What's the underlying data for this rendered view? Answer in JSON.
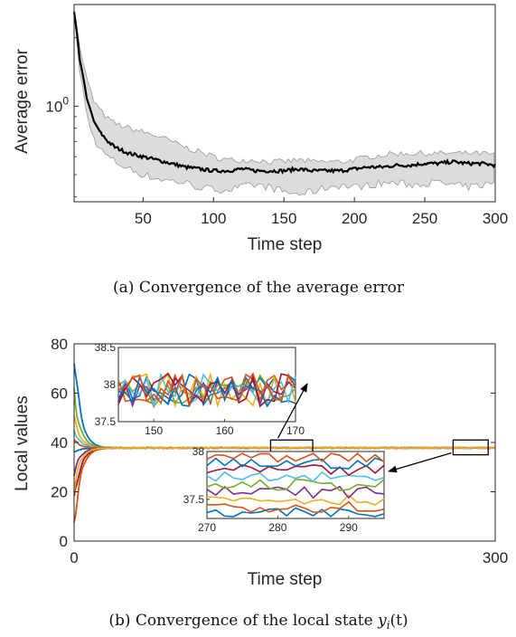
{
  "chart_data": [
    {
      "type": "line",
      "ylabel": "Average error",
      "xlabel": "Time step",
      "caption": "(a) Convergence of the average error",
      "y_scale": "log",
      "xlim": [
        1,
        300
      ],
      "ylim": [
        0.38,
        2.8
      ],
      "x_ticks": [
        50,
        100,
        150,
        200,
        250,
        300
      ],
      "x_tick_labels": [
        "50",
        "100",
        "150",
        "200",
        "250",
        "300"
      ],
      "y_tick_value": 1.0,
      "y_tick_label_base": "10",
      "y_tick_label_exp": "0",
      "grid": false,
      "series": [
        {
          "role": "mean",
          "color": "#000000",
          "x": [
            1,
            5,
            10,
            15,
            20,
            25,
            30,
            40,
            50,
            60,
            70,
            80,
            90,
            100,
            110,
            120,
            130,
            140,
            150,
            160,
            170,
            180,
            190,
            200,
            210,
            220,
            230,
            240,
            250,
            260,
            270,
            280,
            290,
            300
          ],
          "y": [
            2.6,
            1.6,
            1.08,
            0.86,
            0.76,
            0.7,
            0.66,
            0.62,
            0.6,
            0.58,
            0.56,
            0.54,
            0.53,
            0.52,
            0.52,
            0.53,
            0.52,
            0.52,
            0.52,
            0.53,
            0.52,
            0.52,
            0.52,
            0.53,
            0.54,
            0.54,
            0.55,
            0.55,
            0.56,
            0.56,
            0.57,
            0.56,
            0.56,
            0.55
          ]
        },
        {
          "role": "band-upper",
          "color": "#dcdcdc",
          "x": [
            1,
            5,
            10,
            15,
            20,
            25,
            30,
            40,
            50,
            60,
            70,
            80,
            90,
            100,
            110,
            120,
            130,
            140,
            150,
            160,
            170,
            180,
            190,
            200,
            210,
            220,
            230,
            240,
            250,
            260,
            270,
            280,
            290,
            300
          ],
          "y": [
            2.7,
            1.8,
            1.3,
            1.05,
            0.95,
            0.88,
            0.84,
            0.8,
            0.77,
            0.74,
            0.7,
            0.66,
            0.63,
            0.6,
            0.58,
            0.58,
            0.58,
            0.57,
            0.57,
            0.58,
            0.57,
            0.57,
            0.57,
            0.58,
            0.6,
            0.61,
            0.62,
            0.62,
            0.62,
            0.62,
            0.62,
            0.62,
            0.62,
            0.61
          ]
        },
        {
          "role": "band-lower",
          "color": "#dcdcdc",
          "x": [
            1,
            5,
            10,
            15,
            20,
            25,
            30,
            40,
            50,
            60,
            70,
            80,
            90,
            100,
            110,
            120,
            130,
            140,
            150,
            160,
            170,
            180,
            190,
            200,
            210,
            220,
            230,
            240,
            250,
            260,
            270,
            280,
            290,
            300
          ],
          "y": [
            2.5,
            1.4,
            0.9,
            0.72,
            0.64,
            0.6,
            0.57,
            0.53,
            0.5,
            0.48,
            0.47,
            0.46,
            0.44,
            0.43,
            0.43,
            0.44,
            0.45,
            0.44,
            0.42,
            0.41,
            0.42,
            0.44,
            0.45,
            0.44,
            0.45,
            0.46,
            0.46,
            0.45,
            0.46,
            0.46,
            0.45,
            0.44,
            0.45,
            0.46
          ]
        }
      ]
    },
    {
      "type": "line",
      "ylabel": "Local values",
      "xlabel": "Time step",
      "caption_prefix": "(b) Convergence of the local state ",
      "caption_math": "y",
      "caption_sub": "i",
      "caption_suffix": "(t)",
      "xlim": [
        0,
        300
      ],
      "ylim": [
        0,
        80
      ],
      "x_ticks": [
        0,
        300
      ],
      "x_tick_labels": [
        "0",
        "300"
      ],
      "y_ticks": [
        0,
        20,
        40,
        60,
        80
      ],
      "y_tick_labels": [
        "0",
        "20",
        "40",
        "60",
        "80"
      ],
      "grid": false,
      "consensus_value": 37.8,
      "colors": [
        "#0072bd",
        "#d95319",
        "#edb120",
        "#7e2f8e",
        "#77ac30",
        "#4dbeee",
        "#a2142f"
      ],
      "series_start_values": [
        78,
        5,
        50,
        28,
        60,
        45,
        15,
        36,
        41,
        22
      ],
      "highlight_boxes": [
        {
          "x": [
            140,
            170
          ],
          "y": [
            35,
            41
          ]
        },
        {
          "x": [
            270,
            295
          ],
          "y": [
            35,
            41
          ]
        }
      ],
      "insets": [
        {
          "xlim": [
            145,
            170
          ],
          "ylim": [
            37.5,
            38.5
          ],
          "x_ticks": [
            150,
            160,
            170
          ],
          "x_tick_labels": [
            "150",
            "160",
            "170"
          ],
          "y_ticks": [
            37.5,
            38,
            38.5
          ],
          "y_tick_labels": [
            "37.5",
            "38",
            "38.5"
          ],
          "band": [
            37.7,
            38.15
          ]
        },
        {
          "xlim": [
            270,
            295
          ],
          "ylim": [
            37.3,
            38
          ],
          "x_ticks": [
            270,
            280,
            290
          ],
          "x_tick_labels": [
            "270",
            "280",
            "290"
          ],
          "y_ticks": [
            37.5,
            38
          ],
          "y_tick_labels": [
            "37.5",
            "38"
          ],
          "band": [
            37.35,
            37.95
          ]
        }
      ]
    }
  ]
}
